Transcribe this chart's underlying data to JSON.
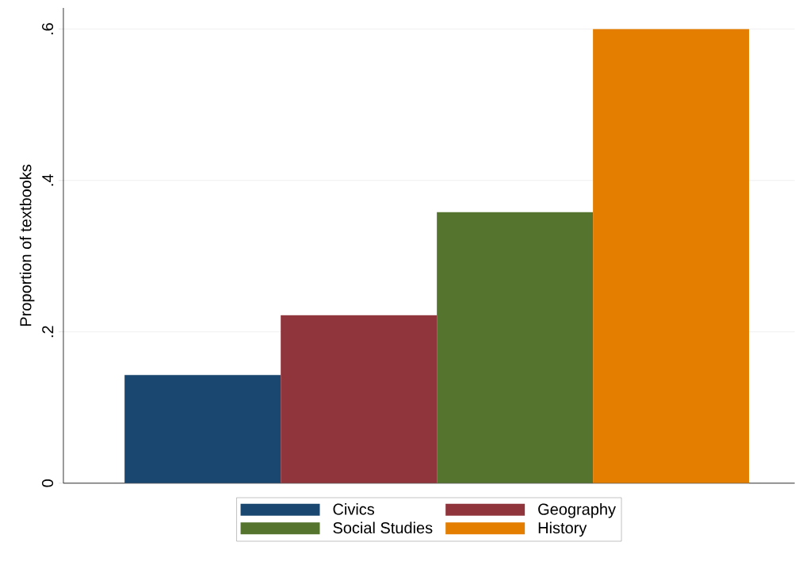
{
  "chart_data": {
    "type": "bar",
    "ylabel": "Proportion of textbooks",
    "categories": [
      null
    ],
    "series": [
      {
        "name": "Civics",
        "color": "#1a476f",
        "values": [
          0.143
        ]
      },
      {
        "name": "Geography",
        "color": "#90353b",
        "values": [
          0.222
        ]
      },
      {
        "name": "Social Studies",
        "color": "#55752f",
        "values": [
          0.358
        ]
      },
      {
        "name": "History",
        "color": "#e37e00",
        "values": [
          0.6
        ]
      }
    ],
    "ylim": [
      0,
      0.628
    ],
    "yticks": [
      0,
      {
        "value": 0.2,
        "label": ".2"
      },
      {
        "value": 0.4,
        "label": ".4"
      },
      {
        "value": 0.6,
        "label": ".6"
      }
    ],
    "grid": "y",
    "legend": "bottom"
  }
}
